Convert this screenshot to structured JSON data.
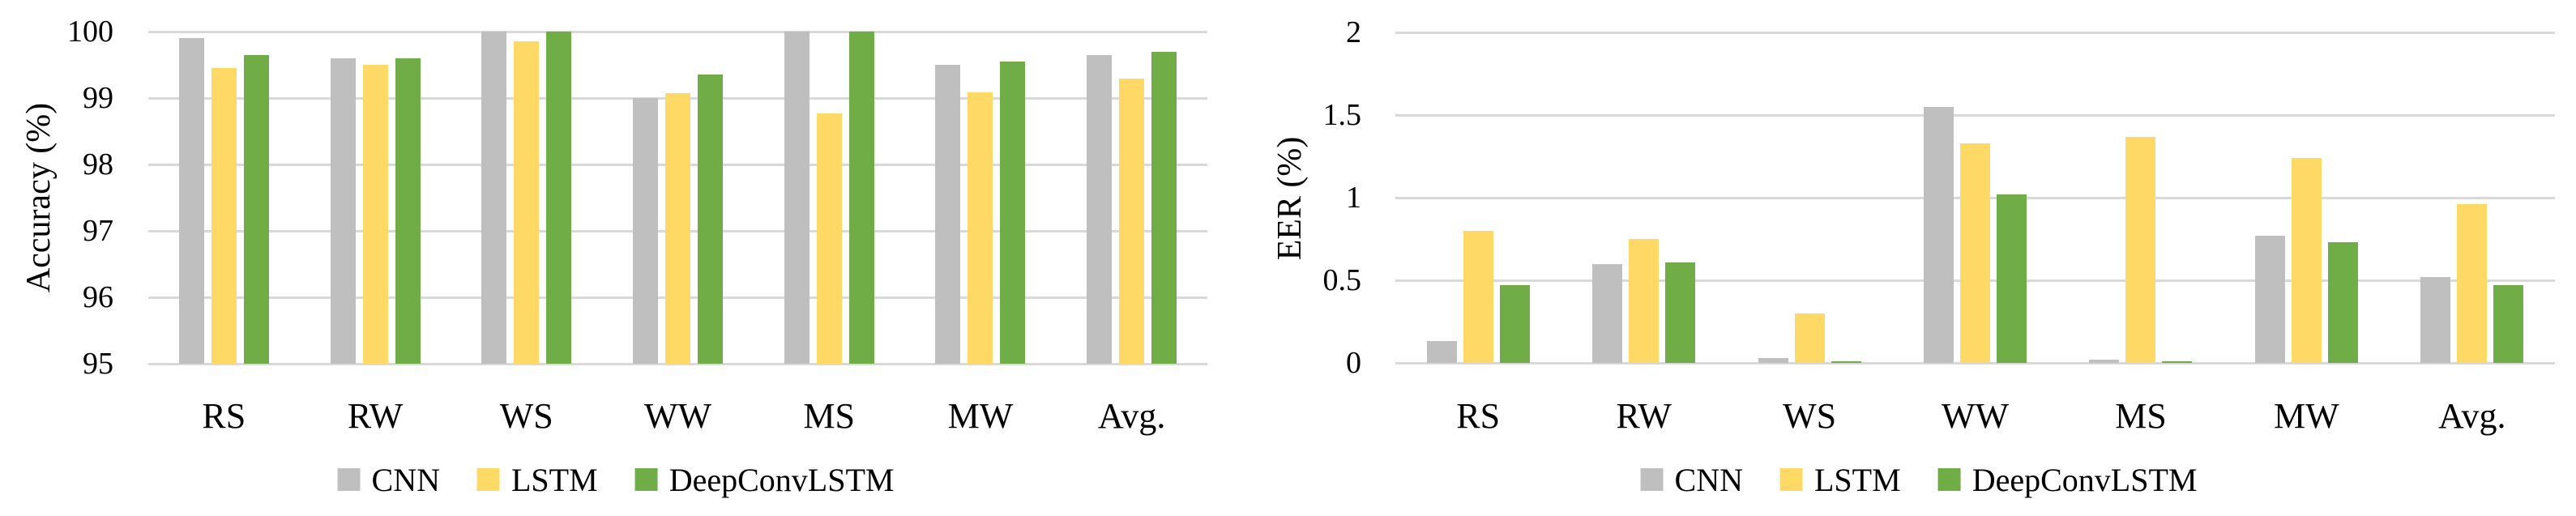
{
  "figure": {
    "background_color": "#FFFFFF",
    "text_color": "#000000",
    "gridline_color": "#D9D9D9"
  },
  "legend": {
    "items": [
      {
        "label": "CNN",
        "color": "#BFBFBF"
      },
      {
        "label": "LSTM",
        "color": "#FFD966"
      },
      {
        "label": "DeepConvLSTM",
        "color": "#70AD47"
      }
    ]
  },
  "chart_data": [
    {
      "type": "bar",
      "title": "",
      "ylabel": "Accuracy (%)",
      "xlabel": "",
      "ylim": [
        95,
        100
      ],
      "yticks": [
        95,
        96,
        97,
        98,
        99,
        100
      ],
      "ytick_labels": [
        "95",
        "96",
        "97",
        "98",
        "99",
        "100"
      ],
      "grid": true,
      "legend_position": "bottom-center",
      "categories": [
        "RS",
        "RW",
        "WS",
        "WW",
        "MS",
        "MW",
        "Avg."
      ],
      "series": [
        {
          "name": "CNN",
          "color": "#BFBFBF",
          "values": [
            99.9,
            99.6,
            100,
            99.0,
            100,
            99.5,
            99.65
          ]
        },
        {
          "name": "LSTM",
          "color": "#FFD966",
          "values": [
            99.45,
            99.5,
            99.85,
            99.07,
            98.77,
            99.08,
            99.29
          ]
        },
        {
          "name": "DeepConvLSTM",
          "color": "#70AD47",
          "values": [
            99.65,
            99.6,
            100,
            99.35,
            100,
            99.55,
            99.69
          ]
        }
      ]
    },
    {
      "type": "bar",
      "title": "",
      "ylabel": "EER (%)",
      "xlabel": "",
      "ylim": [
        0,
        2
      ],
      "yticks": [
        0,
        0.5,
        1,
        1.5,
        2
      ],
      "ytick_labels": [
        "0",
        "0.5",
        "1",
        "1.5",
        "2"
      ],
      "grid": true,
      "legend_position": "bottom-center",
      "categories": [
        "RS",
        "RW",
        "WS",
        "WW",
        "MS",
        "MW",
        "Avg."
      ],
      "series": [
        {
          "name": "CNN",
          "color": "#BFBFBF",
          "values": [
            0.13,
            0.6,
            0.03,
            1.55,
            0.02,
            0.77,
            0.52
          ]
        },
        {
          "name": "LSTM",
          "color": "#FFD966",
          "values": [
            0.8,
            0.75,
            0.3,
            1.33,
            1.37,
            1.24,
            0.96
          ]
        },
        {
          "name": "DeepConvLSTM",
          "color": "#70AD47",
          "values": [
            0.47,
            0.61,
            0.01,
            1.02,
            0.01,
            0.73,
            0.47
          ]
        }
      ]
    }
  ]
}
